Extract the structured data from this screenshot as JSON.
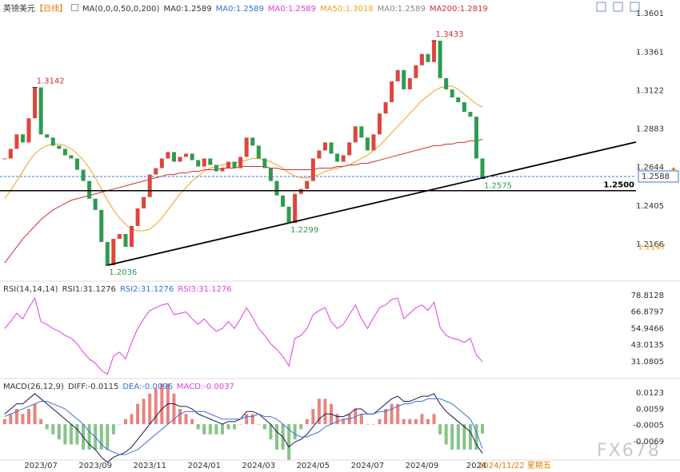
{
  "chart_data": [
    {
      "type": "candlestick",
      "title": "英镑美元",
      "period": "【日线】",
      "period_color": "#e07b00",
      "indicator_labels": [
        {
          "text": "MA(0,0,0,50,0,200)",
          "color": "#333333"
        },
        {
          "text": "MA0:1.2589",
          "color": "#333333"
        },
        {
          "text": "MA0:1.2589",
          "color": "#2f6fe0"
        },
        {
          "text": "MA0:1.2589",
          "color": "#e040e0"
        },
        {
          "text": "MA50:1.3018",
          "color": "#f0a020"
        },
        {
          "text": "MA0:1.2589",
          "color": "#888888"
        },
        {
          "text": "MA200:1.2819",
          "color": "#d03030"
        }
      ],
      "categories": [
        null,
        null,
        null,
        null,
        null,
        null,
        "2023/07",
        null,
        null,
        null,
        null,
        null,
        null,
        null,
        null,
        "2023/09",
        null,
        null,
        null,
        null,
        null,
        null,
        null,
        null,
        "2023/11",
        null,
        null,
        null,
        null,
        null,
        null,
        null,
        null,
        "2024/01",
        null,
        null,
        null,
        null,
        null,
        null,
        null,
        null,
        "2024/03",
        null,
        null,
        null,
        null,
        null,
        null,
        null,
        null,
        "2024/05",
        null,
        null,
        null,
        null,
        null,
        null,
        null,
        null,
        "2024/07",
        null,
        null,
        null,
        null,
        null,
        null,
        null,
        null,
        "2024/09",
        null,
        null,
        null,
        null,
        null,
        null,
        null,
        null,
        "2024",
        null
      ],
      "close": [
        1.27,
        1.276,
        1.285,
        1.28,
        1.295,
        1.3142,
        1.285,
        1.283,
        1.278,
        1.276,
        1.272,
        1.27,
        1.263,
        1.256,
        1.245,
        1.238,
        1.218,
        1.2036,
        1.22,
        1.223,
        1.215,
        1.228,
        1.239,
        1.246,
        1.26,
        1.264,
        1.27,
        1.274,
        1.268,
        1.271,
        1.273,
        1.269,
        1.265,
        1.27,
        1.266,
        1.262,
        1.264,
        1.268,
        1.264,
        1.271,
        1.283,
        1.278,
        1.27,
        1.264,
        1.256,
        1.247,
        1.24,
        1.2299,
        1.248,
        1.251,
        1.256,
        1.27,
        1.275,
        1.28,
        1.273,
        1.268,
        1.272,
        1.28,
        1.29,
        1.283,
        1.275,
        1.285,
        1.298,
        1.305,
        1.318,
        1.325,
        1.313,
        1.32,
        1.328,
        1.335,
        1.33,
        1.3433,
        1.32,
        1.313,
        1.308,
        1.305,
        1.299,
        1.296,
        1.27,
        1.2575
      ],
      "up_color": "#e0443c",
      "down_color": "#2e9b4f",
      "lines": [
        {
          "color": "#f0a020",
          "values": [
            1.245,
            1.25,
            1.256,
            1.262,
            1.268,
            1.273,
            1.276,
            1.278,
            1.279,
            1.279,
            1.278,
            1.276,
            1.273,
            1.269,
            1.264,
            1.258,
            1.251,
            1.244,
            1.238,
            1.233,
            1.229,
            1.226,
            1.225,
            1.225,
            1.226,
            1.229,
            1.233,
            1.238,
            1.243,
            1.248,
            1.252,
            1.256,
            1.259,
            1.262,
            1.264,
            1.265,
            1.266,
            1.267,
            1.267,
            1.268,
            1.269,
            1.27,
            1.27,
            1.269,
            1.268,
            1.266,
            1.264,
            1.261,
            1.259,
            1.258,
            1.258,
            1.259,
            1.26,
            1.262,
            1.263,
            1.264,
            1.265,
            1.266,
            1.268,
            1.27,
            1.272,
            1.275,
            1.278,
            1.282,
            1.286,
            1.29,
            1.294,
            1.298,
            1.302,
            1.306,
            1.309,
            1.312,
            1.314,
            1.315,
            1.315,
            1.313,
            1.31,
            1.307,
            1.304,
            1.3018
          ]
        },
        {
          "color": "#d03030",
          "values": [
            1.205,
            1.21,
            1.215,
            1.22,
            1.224,
            1.228,
            1.232,
            1.235,
            1.238,
            1.24,
            1.242,
            1.244,
            1.245,
            1.246,
            1.247,
            1.248,
            1.249,
            1.25,
            1.251,
            1.252,
            1.253,
            1.254,
            1.255,
            1.256,
            1.257,
            1.258,
            1.259,
            1.26,
            1.26,
            1.261,
            1.261,
            1.262,
            1.262,
            1.263,
            1.263,
            1.263,
            1.264,
            1.264,
            1.264,
            1.265,
            1.265,
            1.265,
            1.265,
            1.265,
            1.264,
            1.264,
            1.263,
            1.263,
            1.263,
            1.263,
            1.263,
            1.263,
            1.264,
            1.264,
            1.264,
            1.265,
            1.265,
            1.266,
            1.266,
            1.267,
            1.267,
            1.268,
            1.269,
            1.27,
            1.271,
            1.272,
            1.273,
            1.274,
            1.275,
            1.276,
            1.277,
            1.278,
            1.278,
            1.279,
            1.279,
            1.28,
            1.28,
            1.281,
            1.281,
            1.2819
          ]
        }
      ],
      "annotations": [
        {
          "value": 1.3142,
          "color": "#d03030",
          "position": "above"
        },
        {
          "value": 1.2036,
          "color": "#2e9b4f",
          "position": "below"
        },
        {
          "value": 1.2299,
          "color": "#2e9b4f",
          "position": "below"
        },
        {
          "value": 1.3433,
          "color": "#d03030",
          "position": "above"
        },
        {
          "value": 1.2575,
          "color": "#2e9b4f",
          "position": "below"
        }
      ],
      "trendline": {
        "from": 1.2036,
        "to": 1.2299,
        "color": "#000000"
      },
      "hlines": [
        {
          "value": 1.25,
          "label": "1.2500",
          "color": "#000000"
        }
      ],
      "price_line": {
        "value": 1.2588,
        "color": "#3a7bd5"
      },
      "level_labels": [
        {
          "value": 1.2147,
          "color": "#f0a020"
        }
      ],
      "ylim": [
        1.1947,
        1.3686
      ],
      "yticks": [
        1.3601,
        1.3361,
        1.3122,
        1.2883,
        1.2644,
        1.2405,
        1.2166
      ],
      "grid": false
    },
    {
      "type": "line",
      "title": "RSI(14,14,14)",
      "indicator_labels": [
        {
          "text": "RSI1:31.1276",
          "color": "#333333"
        },
        {
          "text": "RSI2:31.1276",
          "color": "#2f6fe0"
        },
        {
          "text": "RSI3:31.1276",
          "color": "#e040e0"
        }
      ],
      "series": [
        {
          "color": "#e040e0",
          "values": [
            55,
            60,
            66,
            62,
            70,
            77,
            60,
            58,
            55,
            53,
            50,
            48,
            44,
            38,
            33,
            30,
            25,
            22,
            35,
            38,
            33,
            45,
            55,
            62,
            68,
            70,
            72,
            73,
            65,
            66,
            67,
            62,
            58,
            62,
            57,
            53,
            55,
            60,
            55,
            62,
            70,
            63,
            55,
            50,
            44,
            40,
            35,
            28,
            48,
            50,
            55,
            65,
            68,
            70,
            60,
            55,
            58,
            65,
            72,
            62,
            55,
            63,
            70,
            72,
            76,
            77,
            62,
            66,
            70,
            72,
            68,
            74,
            56,
            50,
            48,
            47,
            45,
            48,
            36,
            31.1276
          ]
        }
      ],
      "ylim": [
        20.1,
        86.3
      ],
      "yticks": [
        78.8128,
        66.8797,
        54.9466,
        43.0135,
        31.0805
      ],
      "grid": false
    },
    {
      "type": "macd",
      "title": "MACD(26,12,9)",
      "indicator_labels": [
        {
          "text": "DIFF:-0.0115",
          "color": "#333333"
        },
        {
          "text": "DEA:-0.0096",
          "color": "#2f6fe0"
        },
        {
          "text": "MACD:-0.0037",
          "color": "#e040e0"
        }
      ],
      "series": [
        {
          "color": "#1a1a50",
          "values": [
            0.004,
            0.006,
            0.008,
            0.008,
            0.01,
            0.012,
            0.01,
            0.008,
            0.006,
            0.004,
            0.002,
            0.0,
            -0.002,
            -0.005,
            -0.008,
            -0.01,
            -0.013,
            -0.015,
            -0.013,
            -0.012,
            -0.011,
            -0.009,
            -0.006,
            -0.003,
            0.0,
            0.003,
            0.006,
            0.008,
            0.008,
            0.007,
            0.007,
            0.006,
            0.004,
            0.003,
            0.002,
            0.001,
            0.0,
            0.001,
            0.001,
            0.002,
            0.005,
            0.005,
            0.004,
            0.002,
            0.0,
            -0.003,
            -0.005,
            -0.009,
            -0.007,
            -0.006,
            -0.004,
            -0.001,
            0.002,
            0.004,
            0.004,
            0.003,
            0.003,
            0.004,
            0.006,
            0.006,
            0.004,
            0.004,
            0.006,
            0.008,
            0.01,
            0.011,
            0.009,
            0.009,
            0.01,
            0.011,
            0.011,
            0.012,
            0.008,
            0.005,
            0.003,
            0.001,
            -0.001,
            -0.003,
            -0.008,
            -0.0115
          ]
        },
        {
          "color": "#3d6fd6",
          "values": [
            0.003,
            0.004,
            0.005,
            0.006,
            0.007,
            0.008,
            0.009,
            0.009,
            0.008,
            0.007,
            0.006,
            0.004,
            0.002,
            0.0,
            -0.003,
            -0.005,
            -0.008,
            -0.01,
            -0.011,
            -0.012,
            -0.012,
            -0.011,
            -0.01,
            -0.008,
            -0.006,
            -0.004,
            -0.002,
            0.0,
            0.002,
            0.004,
            0.005,
            0.005,
            0.005,
            0.005,
            0.004,
            0.003,
            0.002,
            0.002,
            0.002,
            0.002,
            0.003,
            0.003,
            0.004,
            0.003,
            0.003,
            0.002,
            0.0,
            -0.002,
            -0.004,
            -0.005,
            -0.005,
            -0.004,
            -0.003,
            -0.001,
            0.0,
            0.001,
            0.002,
            0.002,
            0.003,
            0.004,
            0.004,
            0.004,
            0.005,
            0.005,
            0.006,
            0.007,
            0.008,
            0.008,
            0.009,
            0.009,
            0.01,
            0.01,
            0.01,
            0.009,
            0.008,
            0.006,
            0.004,
            0.002,
            -0.003,
            -0.0096
          ]
        }
      ],
      "histogram": {
        "up_color": "#e8837e",
        "down_color": "#86c486",
        "values": [
          0.002,
          0.004,
          0.006,
          0.004,
          0.006,
          0.008,
          0.002,
          -0.002,
          -0.004,
          -0.006,
          -0.008,
          -0.008,
          -0.008,
          -0.01,
          -0.01,
          -0.01,
          -0.01,
          -0.01,
          -0.004,
          0.0,
          0.002,
          0.004,
          0.008,
          0.01,
          0.012,
          0.014,
          0.016,
          0.016,
          0.012,
          0.006,
          0.004,
          0.002,
          -0.002,
          -0.004,
          -0.004,
          -0.004,
          -0.004,
          -0.002,
          -0.002,
          0.0,
          0.004,
          0.004,
          0.0,
          -0.002,
          -0.006,
          -0.01,
          -0.01,
          -0.014,
          -0.006,
          -0.002,
          0.002,
          0.006,
          0.01,
          0.01,
          0.008,
          0.004,
          0.002,
          0.004,
          0.006,
          0.004,
          0.0,
          0.0,
          0.002,
          0.006,
          0.008,
          0.008,
          0.002,
          0.002,
          0.002,
          0.004,
          0.002,
          0.004,
          -0.004,
          -0.008,
          -0.01,
          -0.01,
          -0.01,
          -0.01,
          -0.01,
          -0.0037
        ]
      },
      "ylim": [
        -0.0138,
        0.0167
      ],
      "yticks": [
        0.0123,
        0.0059,
        -0.0005,
        -0.0069
      ],
      "grid": false
    }
  ],
  "crosshair_label": "2024/11/22 星期五",
  "watermark": "FX678"
}
